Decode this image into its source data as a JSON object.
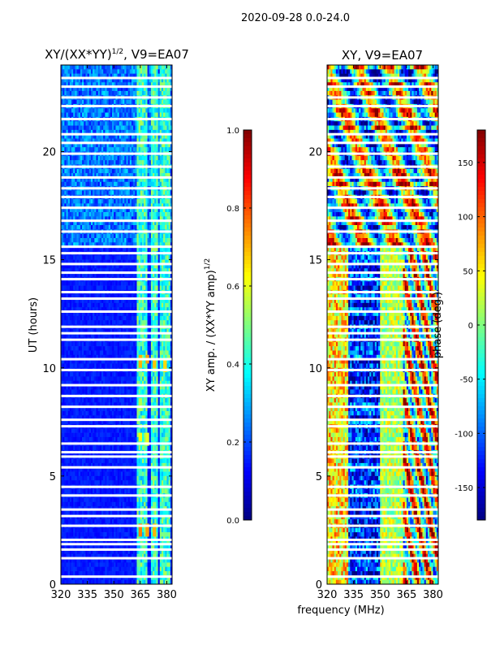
{
  "figure": {
    "suptitle": "2020-09-28 0.0-24.0"
  },
  "chart_data": [
    {
      "type": "heatmap",
      "panel": "left",
      "title_main": "XY/(XX*YY)",
      "title_sup": "1/2",
      "title_rest": ", V9=EA07",
      "xlabel": "",
      "ylabel": "UT (hours)",
      "xlim": [
        320,
        383
      ],
      "ylim": [
        0,
        24
      ],
      "xticks": [
        320,
        335,
        350,
        365,
        380
      ],
      "yticks": [
        0,
        5,
        10,
        15,
        20
      ],
      "colorbar": {
        "label_main": "XY amp. / (XX*YY amp)",
        "label_sup": "1/2",
        "range": [
          0.0,
          1.0
        ],
        "ticks": [
          "0.0",
          "0.2",
          "0.4",
          "0.6",
          "0.8",
          "1.0"
        ],
        "colormap": "jet"
      },
      "background_value": 0.12,
      "bright_channels_mhz": [
        364,
        366,
        368,
        372,
        374,
        377,
        379,
        381
      ],
      "hot_spots": [
        {
          "x": 365,
          "y": 10.3,
          "v": 0.7
        },
        {
          "x": 369,
          "y": 10.4,
          "v": 0.72
        },
        {
          "x": 373,
          "y": 10.2,
          "v": 0.68
        },
        {
          "x": 379,
          "y": 10.1,
          "v": 0.66
        },
        {
          "x": 365,
          "y": 6.8,
          "v": 0.62
        },
        {
          "x": 369,
          "y": 6.7,
          "v": 0.6
        },
        {
          "x": 365,
          "y": 2.5,
          "v": 0.75
        },
        {
          "x": 369,
          "y": 2.5,
          "v": 0.72
        },
        {
          "x": 373,
          "y": 2.5,
          "v": 0.7
        },
        {
          "x": 365,
          "y": 8.3,
          "v": 0.55
        }
      ]
    },
    {
      "type": "heatmap",
      "panel": "right",
      "title_main": "XY, V9=EA07",
      "xlabel": "frequency (MHz)",
      "ylabel": "",
      "xlim": [
        320,
        383
      ],
      "ylim": [
        0,
        24
      ],
      "xticks": [
        320,
        335,
        350,
        365,
        380
      ],
      "yticks": [
        0,
        5,
        10,
        15,
        20
      ],
      "colorbar": {
        "label_main": "phase (deg.)",
        "range": [
          -180,
          180
        ],
        "ticks": [
          "-150",
          "-100",
          "-50",
          "0",
          "50",
          "100",
          "150"
        ],
        "colormap": "jet"
      }
    }
  ],
  "flagged_time_gaps_hours": [
    0.35,
    1.2,
    1.6,
    1.85,
    2.05,
    2.7,
    3.15,
    3.45,
    4.1,
    4.5,
    5.4,
    5.9,
    6.1,
    6.5,
    7.3,
    7.6,
    8.2,
    8.7,
    9.2,
    9.9,
    10.4,
    11.3,
    11.6,
    11.9,
    12.6,
    13.2,
    13.5,
    14.1,
    14.4,
    14.8,
    15.3,
    15.6,
    16.3,
    16.8,
    17.4,
    17.9,
    18.3,
    18.8,
    19.3,
    19.9,
    20.4,
    20.8,
    21.5,
    22.1,
    22.5,
    23.0,
    23.4
  ]
}
